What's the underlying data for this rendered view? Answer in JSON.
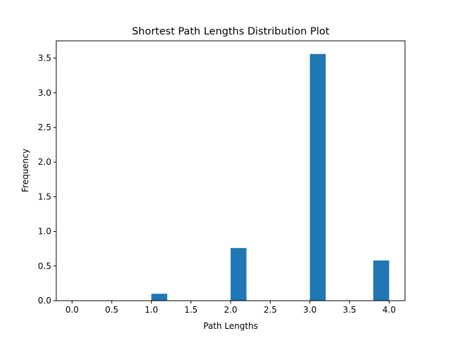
{
  "chart_data": {
    "type": "bar",
    "title": "Shortest Path Lengths Distribution Plot",
    "xlabel": "Path Lengths",
    "ylabel": "Frequency",
    "xlim": [
      -0.2,
      4.2
    ],
    "ylim": [
      0,
      3.75
    ],
    "x_ticks": [
      "0.0",
      "0.5",
      "1.0",
      "1.5",
      "2.0",
      "2.5",
      "3.0",
      "3.5",
      "4.0"
    ],
    "y_ticks": [
      "0.0",
      "0.5",
      "1.0",
      "1.5",
      "2.0",
      "2.5",
      "3.0",
      "3.5"
    ],
    "bin_width": 0.2,
    "bins": [
      {
        "start": 1.0,
        "value": 0.1
      },
      {
        "start": 2.0,
        "value": 0.76
      },
      {
        "start": 3.0,
        "value": 3.56
      },
      {
        "start": 3.8,
        "value": 0.58
      }
    ],
    "bar_color": "#1f77b4",
    "grid": false
  }
}
